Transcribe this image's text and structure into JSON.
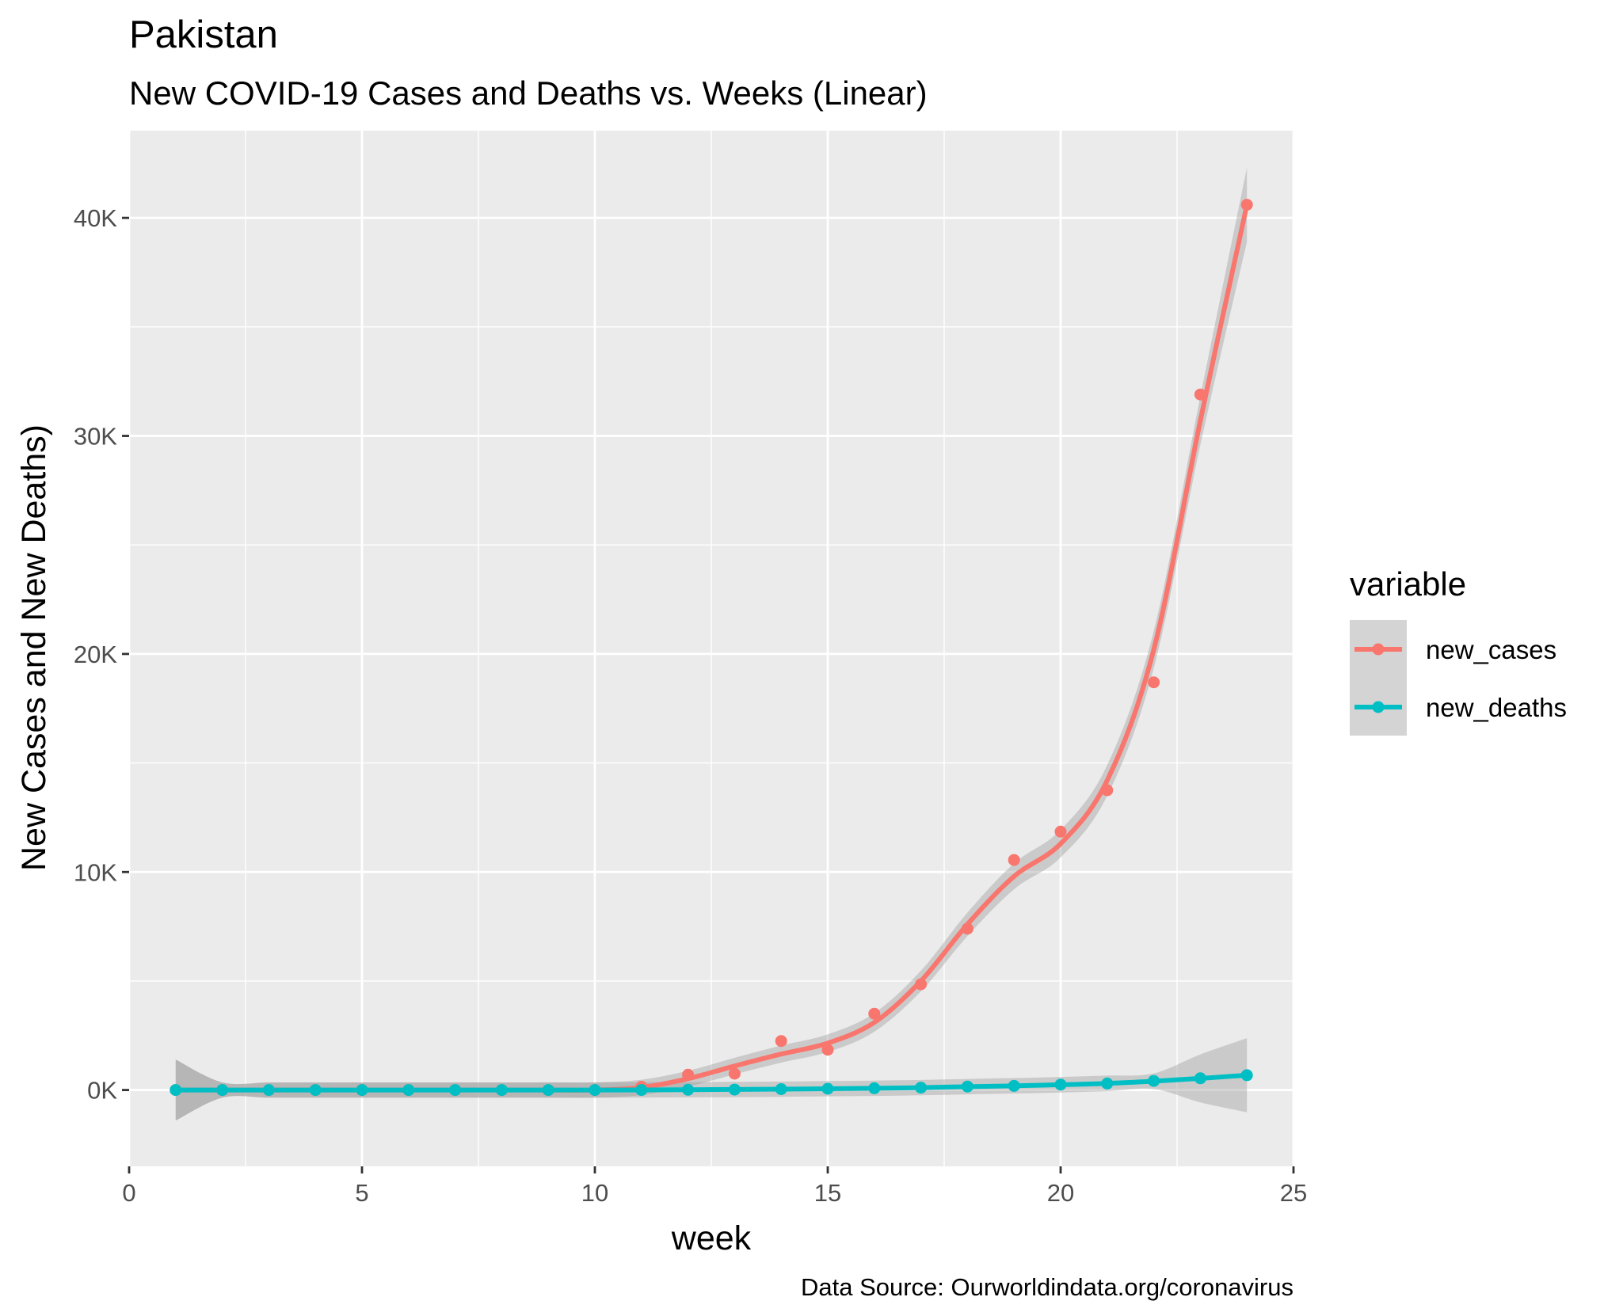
{
  "chart_data": {
    "type": "line",
    "title": "Pakistan",
    "subtitle": "New COVID-19 Cases and Deaths vs. Weeks (Linear)",
    "xlabel": "week",
    "ylabel": "New Cases and New Deaths)",
    "caption": "Data Source: Ourworldindata.org/coronavirus",
    "xlim": [
      0,
      25
    ],
    "ylim": [
      -3500,
      44000
    ],
    "x_ticks": [
      0,
      5,
      10,
      15,
      20,
      25
    ],
    "y_ticks": [
      0,
      10000,
      20000,
      30000,
      40000
    ],
    "y_tick_labels": [
      "0K",
      "10K",
      "20K",
      "30K",
      "40K"
    ],
    "grid": true,
    "smoothing": "loess with confidence band",
    "legend": {
      "title": "variable",
      "position": "right"
    },
    "x": [
      1,
      2,
      3,
      4,
      5,
      6,
      7,
      8,
      9,
      10,
      11,
      12,
      13,
      14,
      15,
      16,
      17,
      18,
      19,
      20,
      21,
      22,
      23,
      24
    ],
    "series": [
      {
        "name": "new_cases",
        "color": "#F8766D",
        "values": [
          0,
          0,
          0,
          0,
          0,
          0,
          0,
          0,
          0,
          0,
          150,
          700,
          750,
          2250,
          1850,
          3500,
          4850,
          7400,
          10550,
          11850,
          13750,
          18700,
          31900,
          40600
        ],
        "smooth": [
          0,
          0,
          0,
          0,
          0,
          0,
          0,
          0,
          0,
          0,
          120,
          520,
          1100,
          1650,
          2150,
          3100,
          5000,
          7600,
          9800,
          11300,
          14200,
          20200,
          30700,
          40600
        ]
      },
      {
        "name": "new_deaths",
        "color": "#00BFC4",
        "values": [
          0,
          0,
          0,
          0,
          0,
          0,
          0,
          0,
          0,
          0,
          0,
          10,
          20,
          40,
          60,
          80,
          110,
          160,
          190,
          250,
          300,
          420,
          540,
          680
        ],
        "smooth": [
          0,
          0,
          0,
          0,
          0,
          0,
          0,
          0,
          0,
          0,
          5,
          15,
          25,
          40,
          60,
          80,
          110,
          155,
          195,
          245,
          305,
          405,
          535,
          680
        ]
      }
    ]
  }
}
